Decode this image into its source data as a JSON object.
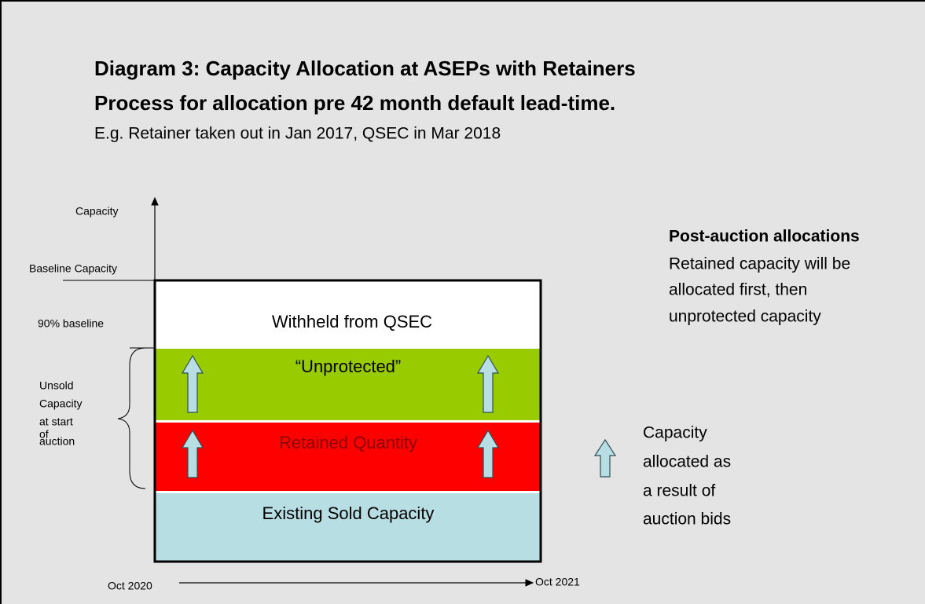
{
  "title": [
    "Diagram 3: Capacity Allocation at ASEPs with Retainers",
    "Process for allocation pre 42 month default lead-time."
  ],
  "subtitle": "E.g. Retainer taken out in Jan 2017, QSEC in Mar 2018",
  "axis": {
    "y_label": "Capacity",
    "x_start": "Oct 2020",
    "x_end": "Oct 2021"
  },
  "levels": {
    "baseline": "Baseline Capacity",
    "ninety": "90% baseline",
    "unsold": [
      "Unsold",
      "Capacity",
      "at start",
      "of",
      "auction"
    ]
  },
  "bands": [
    "Withheld from QSEC",
    "“Unprotected”",
    "Retained Quantity",
    "Existing Sold Capacity"
  ],
  "note": {
    "heading": "Post-auction allocations",
    "lines": [
      "Retained capacity will be",
      "allocated first, then",
      "unprotected capacity"
    ]
  },
  "legend": [
    "Capacity",
    "allocated as",
    "a result of",
    "auction bids"
  ]
}
